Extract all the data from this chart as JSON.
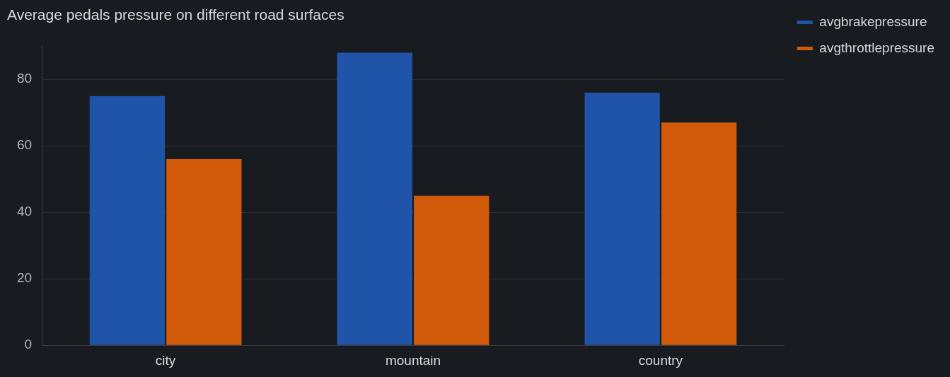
{
  "chart_data": {
    "type": "bar",
    "title": "Average pedals pressure on different road surfaces",
    "categories": [
      "city",
      "mountain",
      "country"
    ],
    "series": [
      {
        "name": "avgbrakepressure",
        "color": "#1f54a8",
        "values": [
          75,
          88,
          76
        ]
      },
      {
        "name": "avgthrottlepressure",
        "color": "#d05a0a",
        "values": [
          56,
          45,
          67
        ]
      }
    ],
    "ylim": [
      0,
      90
    ],
    "yticks": [
      0,
      20,
      40,
      60,
      80
    ],
    "grid": "y",
    "legend": "top right"
  }
}
